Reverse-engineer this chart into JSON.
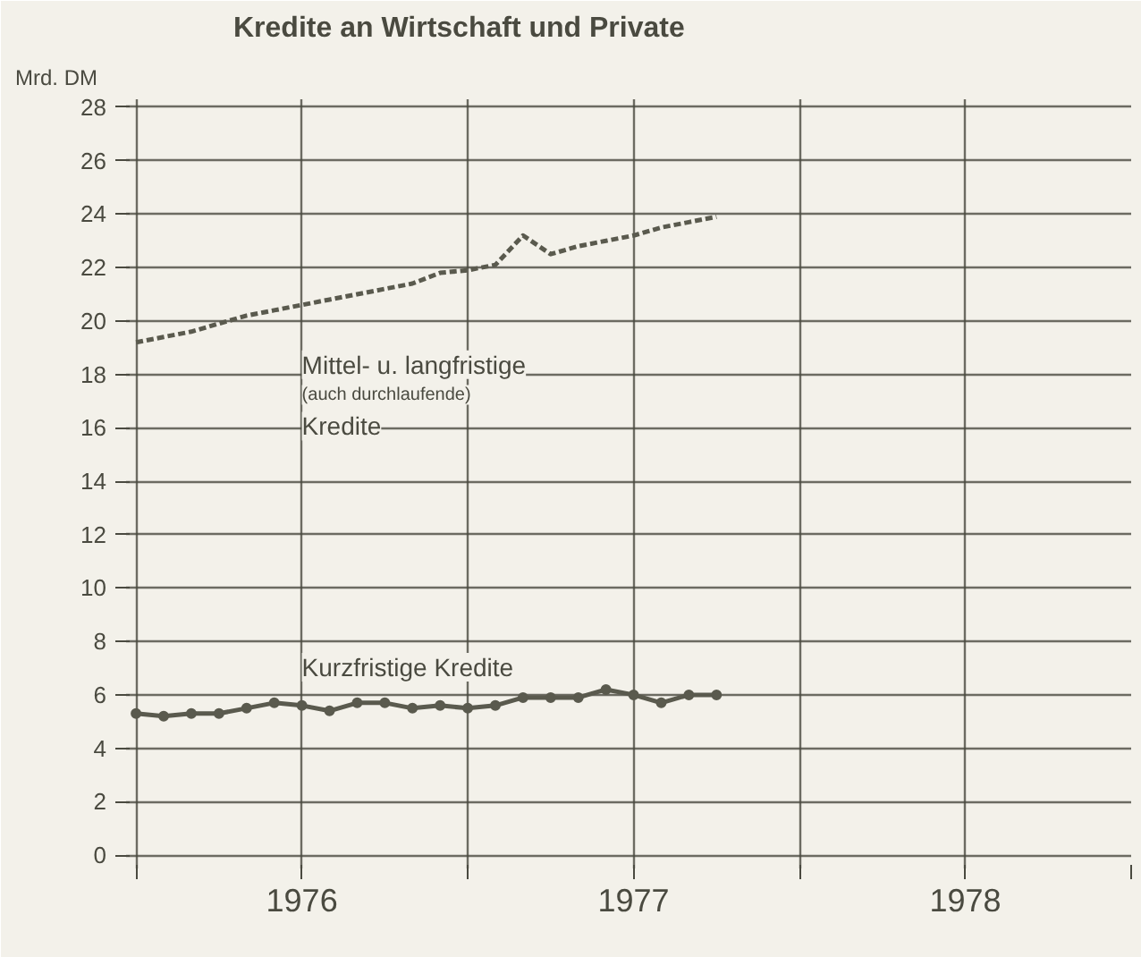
{
  "chart_data": {
    "type": "line",
    "title": "Kredite an Wirtschaft und Private",
    "ylabel": "Mrd. DM",
    "x": [
      1976.0,
      1976.0833,
      1976.1667,
      1976.25,
      1976.3333,
      1976.4167,
      1976.5,
      1976.5833,
      1976.6667,
      1976.75,
      1976.8333,
      1976.9167,
      1977.0,
      1977.0833,
      1977.1667,
      1977.25,
      1977.3333,
      1977.4167,
      1977.5,
      1977.5833,
      1977.6667,
      1977.75
    ],
    "xlim": [
      1975.97,
      1979.0
    ],
    "xticks": [
      {
        "value": 1976,
        "label": null
      },
      {
        "value": 1976.5,
        "label": "1976"
      },
      {
        "value": 1977,
        "label": null
      },
      {
        "value": 1977.5,
        "label": "1977"
      },
      {
        "value": 1978,
        "label": null
      },
      {
        "value": 1978.5,
        "label": "1978"
      },
      {
        "value": 1979,
        "label": null
      }
    ],
    "ylim": [
      -0.5,
      28.3
    ],
    "yticks": [
      0,
      2,
      4,
      6,
      8,
      10,
      12,
      14,
      16,
      18,
      20,
      22,
      24,
      26,
      28
    ],
    "grid": true,
    "series": [
      {
        "name": "Mittel- u. langfristige\n(auch durchlaufende)\nKredite",
        "color": "#5a5a4e",
        "line_style": "dashed",
        "marker": "none",
        "values": [
          19.2,
          19.4,
          19.6,
          19.9,
          20.2,
          20.4,
          20.6,
          20.8,
          21.0,
          21.2,
          21.4,
          21.8,
          21.9,
          22.1,
          23.2,
          22.5,
          22.8,
          23.0,
          23.2,
          23.5,
          23.7,
          23.9
        ]
      },
      {
        "name": "Kurzfristige Kredite",
        "color": "#5a5a4e",
        "line_style": "solid",
        "marker": "circle",
        "values": [
          5.3,
          5.2,
          5.3,
          5.3,
          5.5,
          5.7,
          5.6,
          5.4,
          5.7,
          5.7,
          5.5,
          5.6,
          5.5,
          5.6,
          5.9,
          5.9,
          5.9,
          6.2,
          6.0,
          5.7,
          6.0,
          6.0
        ]
      }
    ]
  }
}
